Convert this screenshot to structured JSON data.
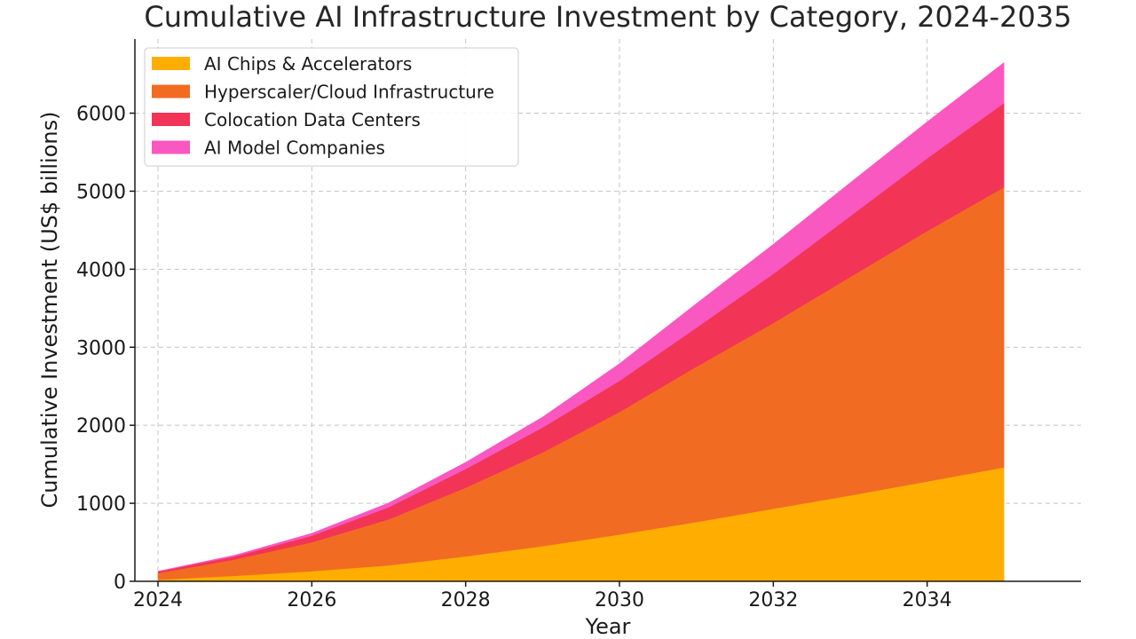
{
  "chart_data": {
    "type": "area",
    "stacked": true,
    "title": "Cumulative AI Infrastructure Investment by Category, 2024-2035",
    "xlabel": "Year",
    "ylabel": "Cumulative Investment (US$ billions)",
    "x": [
      2024,
      2025,
      2026,
      2027,
      2028,
      2029,
      2030,
      2031,
      2032,
      2033,
      2034,
      2035
    ],
    "xticks": [
      2024,
      2026,
      2028,
      2030,
      2032,
      2034
    ],
    "yticks": [
      0,
      1000,
      2000,
      3000,
      4000,
      5000,
      6000
    ],
    "xlim": [
      2023.7,
      2036.0
    ],
    "ylim": [
      0,
      6950
    ],
    "grid": true,
    "legend_position": "top-left",
    "series": [
      {
        "name": "AI Chips & Accelerators",
        "color": "#FFAE00",
        "values": [
          20,
          70,
          130,
          205,
          320,
          450,
          600,
          760,
          930,
          1100,
          1280,
          1460
        ]
      },
      {
        "name": "Hyperscaler/Cloud Infrastructure",
        "color": "#F26B22",
        "values": [
          85,
          210,
          370,
          590,
          880,
          1200,
          1570,
          1990,
          2380,
          2800,
          3210,
          3590
        ]
      },
      {
        "name": "Colocation Data Centers",
        "color": "#F23456",
        "values": [
          20,
          40,
          85,
          155,
          240,
          320,
          400,
          500,
          630,
          780,
          930,
          1080
        ]
      },
      {
        "name": "AI Model Companies",
        "color": "#F858C0",
        "values": [
          5,
          15,
          30,
          55,
          85,
          135,
          220,
          310,
          380,
          430,
          470,
          520
        ]
      }
    ]
  }
}
